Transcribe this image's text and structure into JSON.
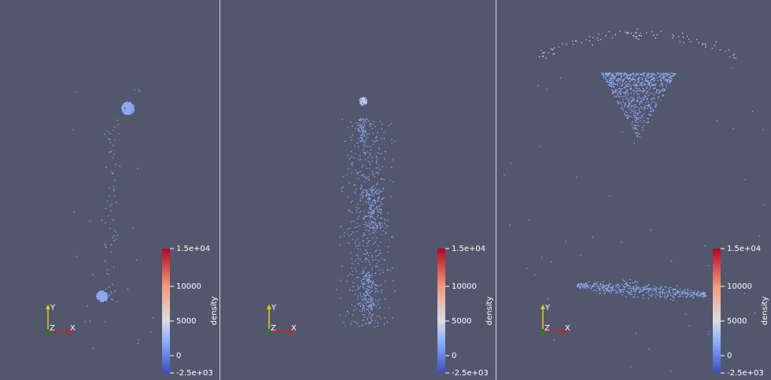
{
  "panels": [
    {
      "colorbar": {
        "title": "density",
        "labels": [
          "1.5e+04",
          "10000",
          "5000",
          "0",
          "-2.5e+03"
        ]
      },
      "axes": {
        "y": "Y",
        "z": "Z",
        "x": "X"
      }
    },
    {
      "colorbar": {
        "title": "density",
        "labels": [
          "1.5e+04",
          "10000",
          "5000",
          "0",
          "-2.5e+03"
        ]
      },
      "axes": {
        "y": "Y",
        "z": "Z",
        "x": "X"
      }
    },
    {
      "colorbar": {
        "title": "density",
        "labels": [
          "1.5e+04",
          "10000",
          "5000",
          "0",
          "-2.5e+03"
        ]
      },
      "axes": {
        "y": "Y",
        "z": "Z",
        "x": "X"
      }
    }
  ]
}
